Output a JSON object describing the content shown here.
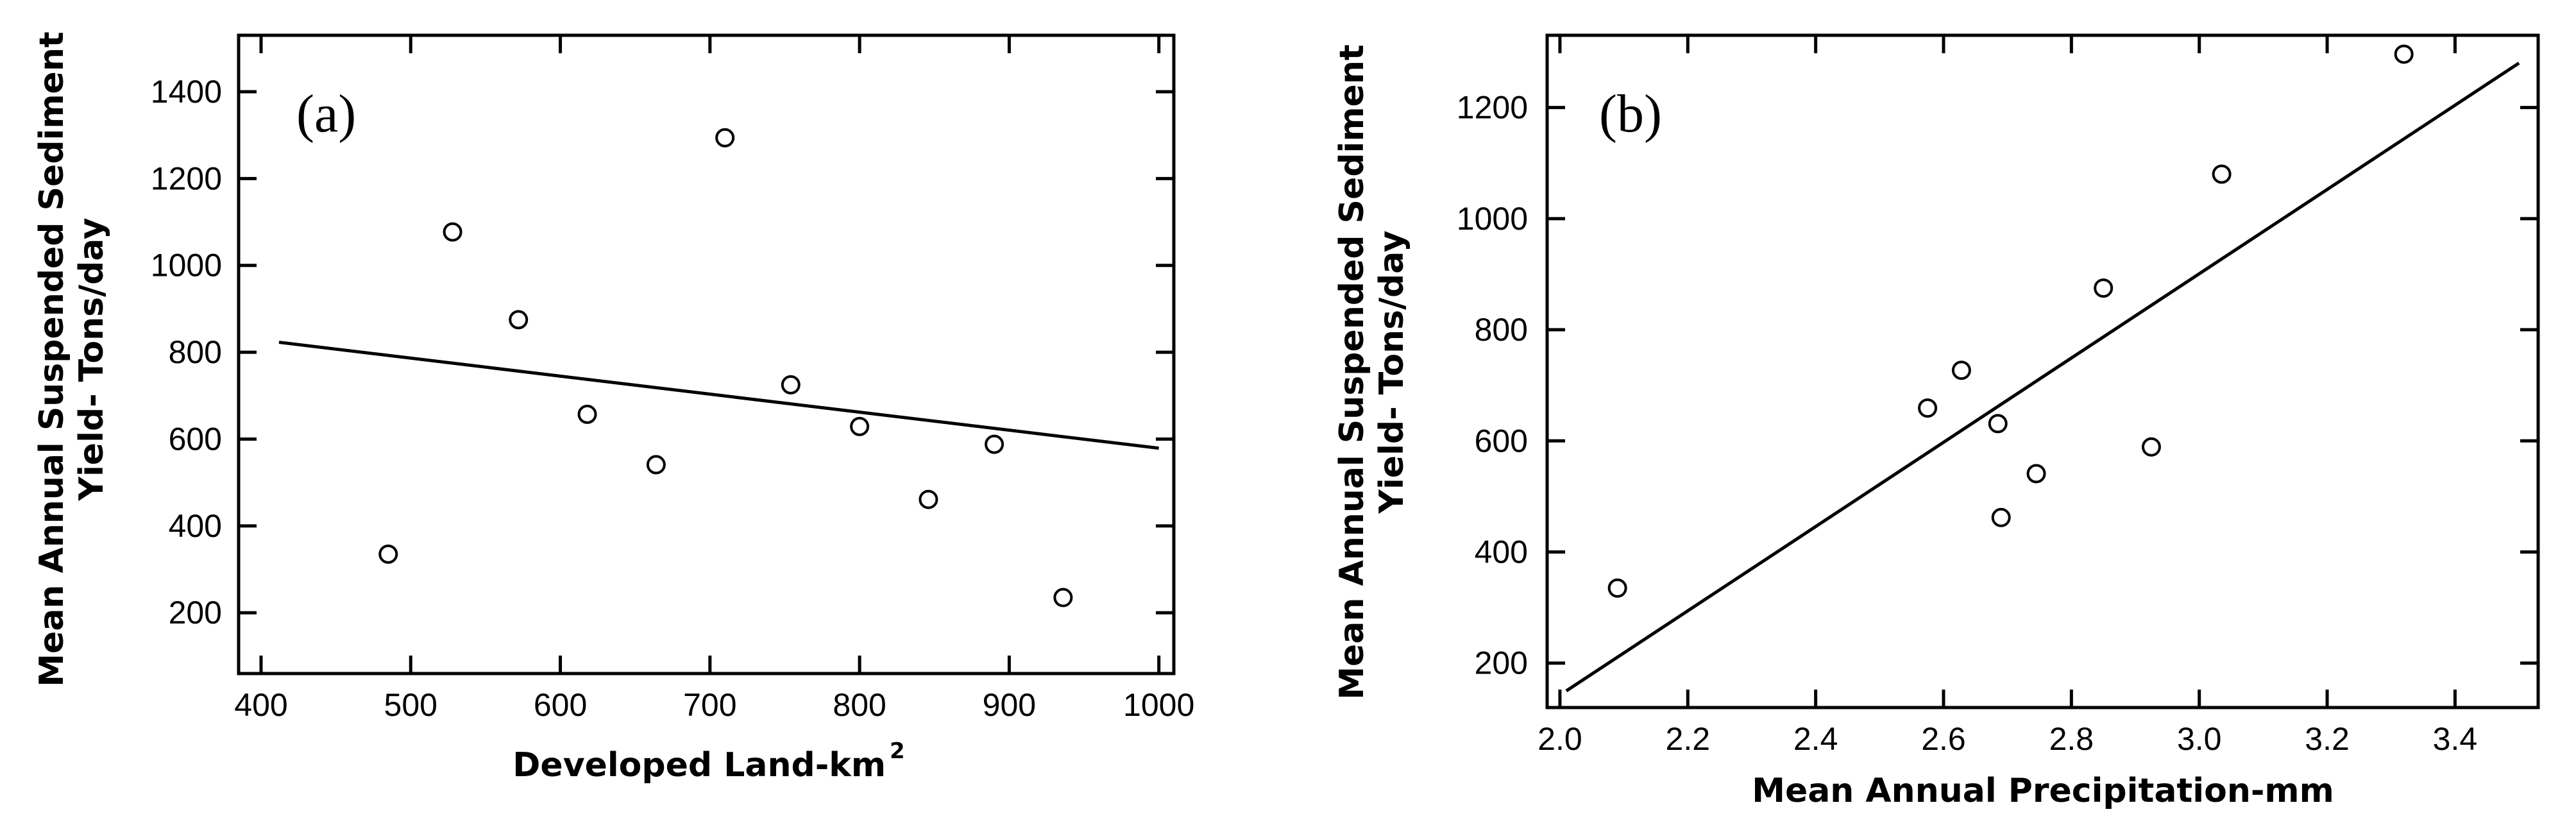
{
  "chart_data": [
    {
      "type": "scatter",
      "panel_label": "(a)",
      "xlabel": "Developed Land-km",
      "xlabel_superscript": "2",
      "ylabel_line1": "Mean Annual Suspended Sediment",
      "ylabel_line2": "Yield- Tons/day",
      "xlim": [
        385,
        1010
      ],
      "ylim": [
        60,
        1530
      ],
      "xticks": [
        400,
        500,
        600,
        700,
        800,
        900,
        1000
      ],
      "yticks": [
        200,
        400,
        600,
        800,
        1000,
        1200,
        1400
      ],
      "points": [
        {
          "x": 485,
          "y": 335
        },
        {
          "x": 528,
          "y": 1077
        },
        {
          "x": 572,
          "y": 875
        },
        {
          "x": 618,
          "y": 657
        },
        {
          "x": 664,
          "y": 541
        },
        {
          "x": 710,
          "y": 1294
        },
        {
          "x": 754,
          "y": 725
        },
        {
          "x": 800,
          "y": 629
        },
        {
          "x": 846,
          "y": 461
        },
        {
          "x": 890,
          "y": 588
        },
        {
          "x": 936,
          "y": 235
        }
      ],
      "fit_line": {
        "x": [
          412,
          1000
        ],
        "y": [
          823,
          579
        ]
      },
      "grid": false
    },
    {
      "type": "scatter",
      "panel_label": "(b)",
      "xlabel": "Mean Annual Precipitation-mm",
      "ylabel_line1": "Mean Annual Suspended Sediment",
      "ylabel_line2": "Yield- Tons/day",
      "xlim": [
        1.98,
        3.53
      ],
      "ylim": [
        120,
        1330
      ],
      "xticks": [
        2.0,
        2.2,
        2.4,
        2.6,
        2.8,
        3.0,
        3.2,
        3.4
      ],
      "xtick_labels": [
        "2.0",
        "2.2",
        "2.4",
        "2.6",
        "2.8",
        "3.0",
        "3.2",
        "3.4"
      ],
      "yticks": [
        200,
        400,
        600,
        800,
        1000,
        1200
      ],
      "points": [
        {
          "x": 2.09,
          "y": 335
        },
        {
          "x": 2.575,
          "y": 659
        },
        {
          "x": 2.628,
          "y": 727
        },
        {
          "x": 2.685,
          "y": 631
        },
        {
          "x": 2.69,
          "y": 462
        },
        {
          "x": 2.745,
          "y": 541
        },
        {
          "x": 2.85,
          "y": 875
        },
        {
          "x": 2.925,
          "y": 589
        },
        {
          "x": 3.035,
          "y": 1080
        },
        {
          "x": 3.32,
          "y": 1296
        }
      ],
      "fit_line": {
        "x": [
          2.01,
          3.5
        ],
        "y": [
          150,
          1280
        ]
      },
      "grid": false
    }
  ]
}
